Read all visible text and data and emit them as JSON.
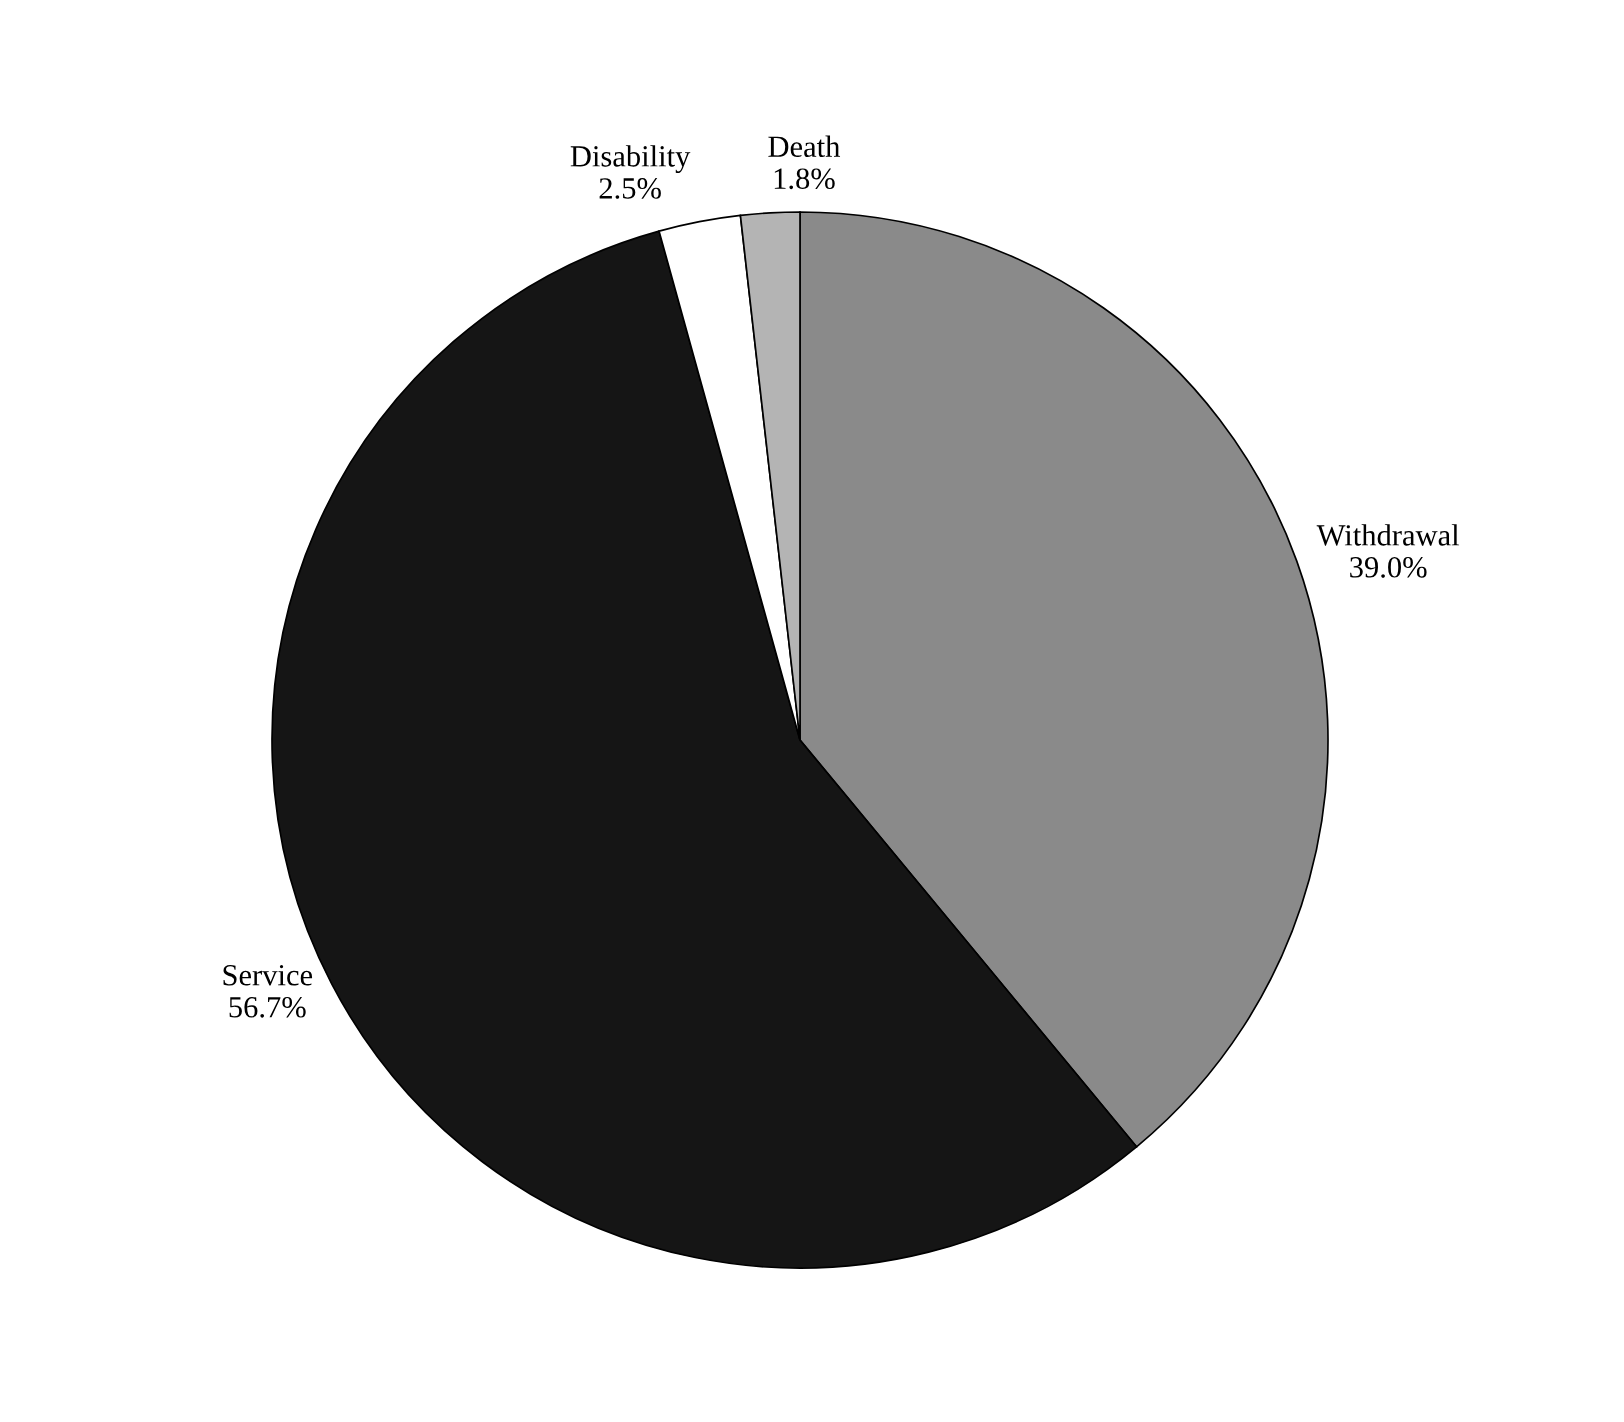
{
  "chart_data": {
    "type": "pie",
    "categories": [
      "Withdrawal",
      "Service",
      "Disability",
      "Death"
    ],
    "values": [
      39.0,
      56.7,
      2.5,
      1.8
    ],
    "colors": [
      "#8a8a8a",
      "#151515",
      "#ffffff",
      "#b4b4b4"
    ],
    "value_labels": [
      "39.0%",
      "56.7%",
      "2.5%",
      "1.8%"
    ],
    "legend": false
  }
}
